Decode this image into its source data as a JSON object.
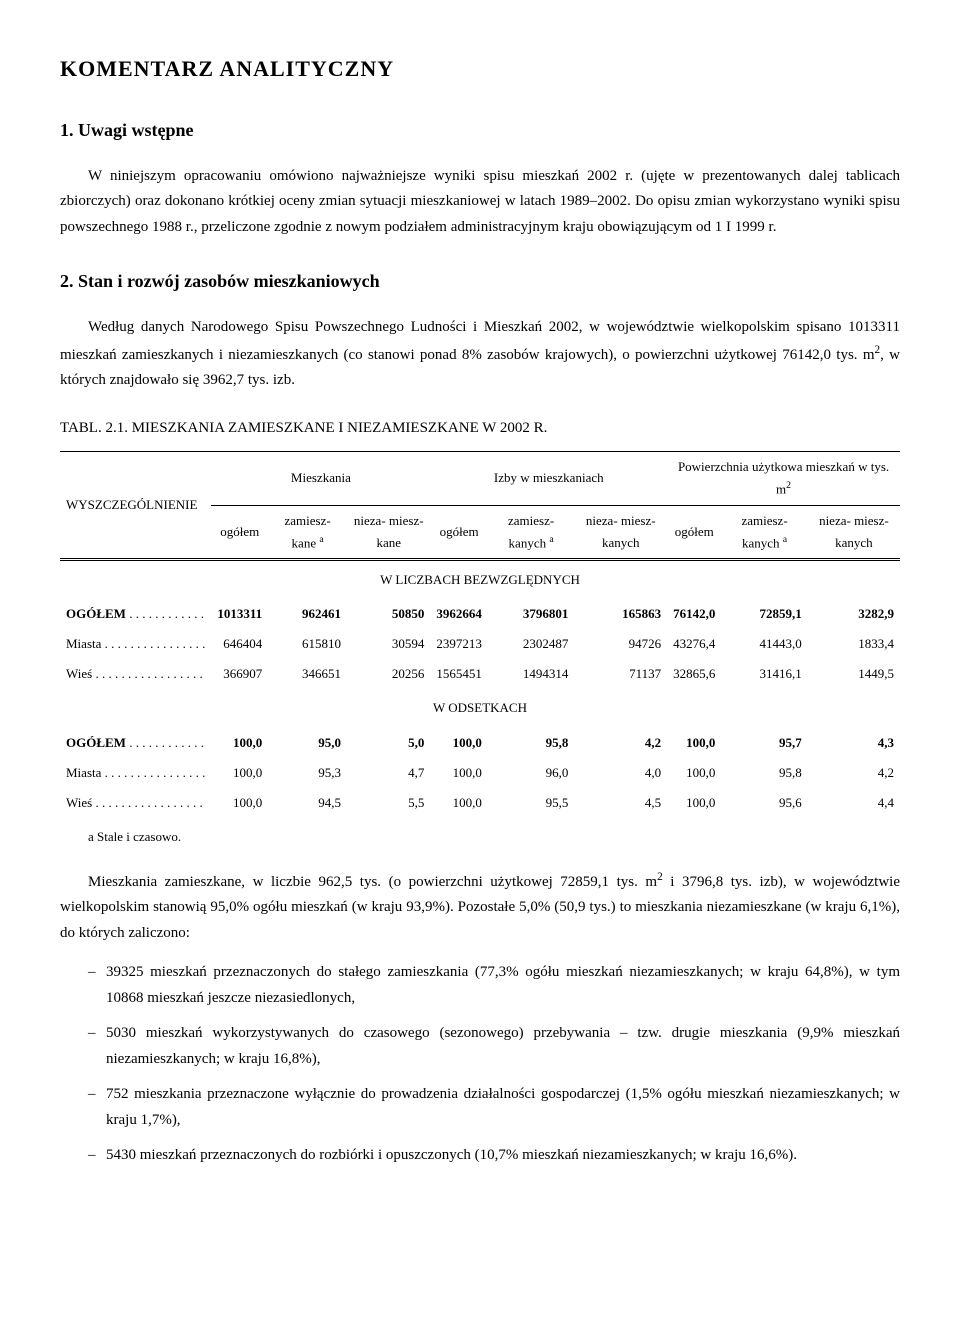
{
  "title": "KOMENTARZ  ANALITYCZNY",
  "s1": {
    "heading": "1. Uwagi wstępne",
    "p1": "W niniejszym opracowaniu omówiono najważniejsze wyniki spisu mieszkań 2002 r. (ujęte w prezentowanych dalej tablicach zbiorczych) oraz dokonano krótkiej oceny zmian sytuacji mieszkaniowej w latach 1989–2002. Do opisu zmian wykorzystano wyniki spisu powszechnego 1988 r., przeliczone zgodnie z nowym podziałem administracyjnym kraju obowiązującym od 1 I 1999 r."
  },
  "s2": {
    "heading": "2. Stan i rozwój zasobów mieszkaniowych",
    "p1_a": "Według danych Narodowego Spisu Powszechnego Ludności i Mieszkań 2002, w województwie wielkopolskim spisano 1013311 mieszkań zamieszkanych i niezamieszkanych (co stanowi ponad 8% zasobów krajowych), o powierzchni użytkowej 76142,0 tys. m",
    "p1_b": ", w których znajdowało się 3962,7 tys. izb."
  },
  "tab21": {
    "label": "TABL. 2.1.  MIESZKANIA  ZAMIESZKANE  I  NIEZAMIESZKANE  W  2002 R.",
    "col_stub": "WYSZCZEGÓLNIENIE",
    "grp1": "Mieszkania",
    "grp2": "Izby w mieszkaniach",
    "grp3_a": "Powierzchnia użytkowa mieszkań w tys. m",
    "sub_ogolem": "ogółem",
    "sub_zam_a": "zamiesz-\nkane ",
    "sub_zam_b": "zamiesz-\nkanych ",
    "sub_niezam_a": "nieza-\nmiesz-\nkane",
    "sub_niezam_b": "nieza-\nmiesz-\nkanych",
    "sup_a": "a",
    "mid1": "W  LICZBACH  BEZWZGLĘDNYCH",
    "mid2": "W  ODSETKACH",
    "rows_abs": [
      {
        "label": "OGÓŁEM",
        "dots": " . . . . . . . . . . . .",
        "bold": true,
        "v": [
          "1013311",
          "962461",
          "50850",
          "3962664",
          "3796801",
          "165863",
          "76142,0",
          "72859,1",
          "3282,9"
        ]
      },
      {
        "label": "Miasta",
        "dots": " . . . . . . . . . . . . . . . .",
        "bold": false,
        "v": [
          "646404",
          "615810",
          "30594",
          "2397213",
          "2302487",
          "94726",
          "43276,4",
          "41443,0",
          "1833,4"
        ]
      },
      {
        "label": "Wieś",
        "dots": " . . . . . . . . . . . . . . . . .",
        "bold": false,
        "v": [
          "366907",
          "346651",
          "20256",
          "1565451",
          "1494314",
          "71137",
          "32865,6",
          "31416,1",
          "1449,5"
        ]
      }
    ],
    "rows_pct": [
      {
        "label": "OGÓŁEM",
        "dots": " . . . . . . . . . . . .",
        "bold": true,
        "v": [
          "100,0",
          "95,0",
          "5,0",
          "100,0",
          "95,8",
          "4,2",
          "100,0",
          "95,7",
          "4,3"
        ]
      },
      {
        "label": "Miasta",
        "dots": " . . . . . . . . . . . . . . . .",
        "bold": false,
        "v": [
          "100,0",
          "95,3",
          "4,7",
          "100,0",
          "96,0",
          "4,0",
          "100,0",
          "95,8",
          "4,2"
        ]
      },
      {
        "label": "Wieś",
        "dots": " . . . . . . . . . . . . . . . . .",
        "bold": false,
        "v": [
          "100,0",
          "94,5",
          "5,5",
          "100,0",
          "95,5",
          "4,5",
          "100,0",
          "95,6",
          "4,4"
        ]
      }
    ],
    "footnote": "a  Stale i czasowo."
  },
  "p_after": {
    "a": "Mieszkania zamieszkane, w liczbie 962,5 tys. (o powierzchni użytkowej 72859,1 tys. m",
    "b": " i 3796,8 tys. izb), w województwie wielkopolskim stanowią 95,0% ogółu mieszkań (w kraju 93,9%). Pozostałe 5,0% (50,9 tys.) to mieszkania niezamieszkane (w kraju 6,1%), do których zaliczono:"
  },
  "bullets": [
    "39325 mieszkań przeznaczonych do stałego zamieszkania (77,3% ogółu mieszkań niezamieszkanych; w kraju 64,8%), w tym 10868 mieszkań jeszcze niezasiedlonych,",
    "5030 mieszkań wykorzystywanych do czasowego (sezonowego) przebywania – tzw. drugie mieszkania (9,9% mieszkań niezamieszkanych; w kraju 16,8%),",
    "752 mieszkania przeznaczone wyłącznie do prowadzenia działalności gospodarczej (1,5% ogółu mieszkań niezamieszkanych; w kraju 1,7%),",
    "5430 mieszkań przeznaczonych do rozbiórki i opuszczonych (10,7% mieszkań niezamieszkanych; w kraju 16,6%)."
  ]
}
